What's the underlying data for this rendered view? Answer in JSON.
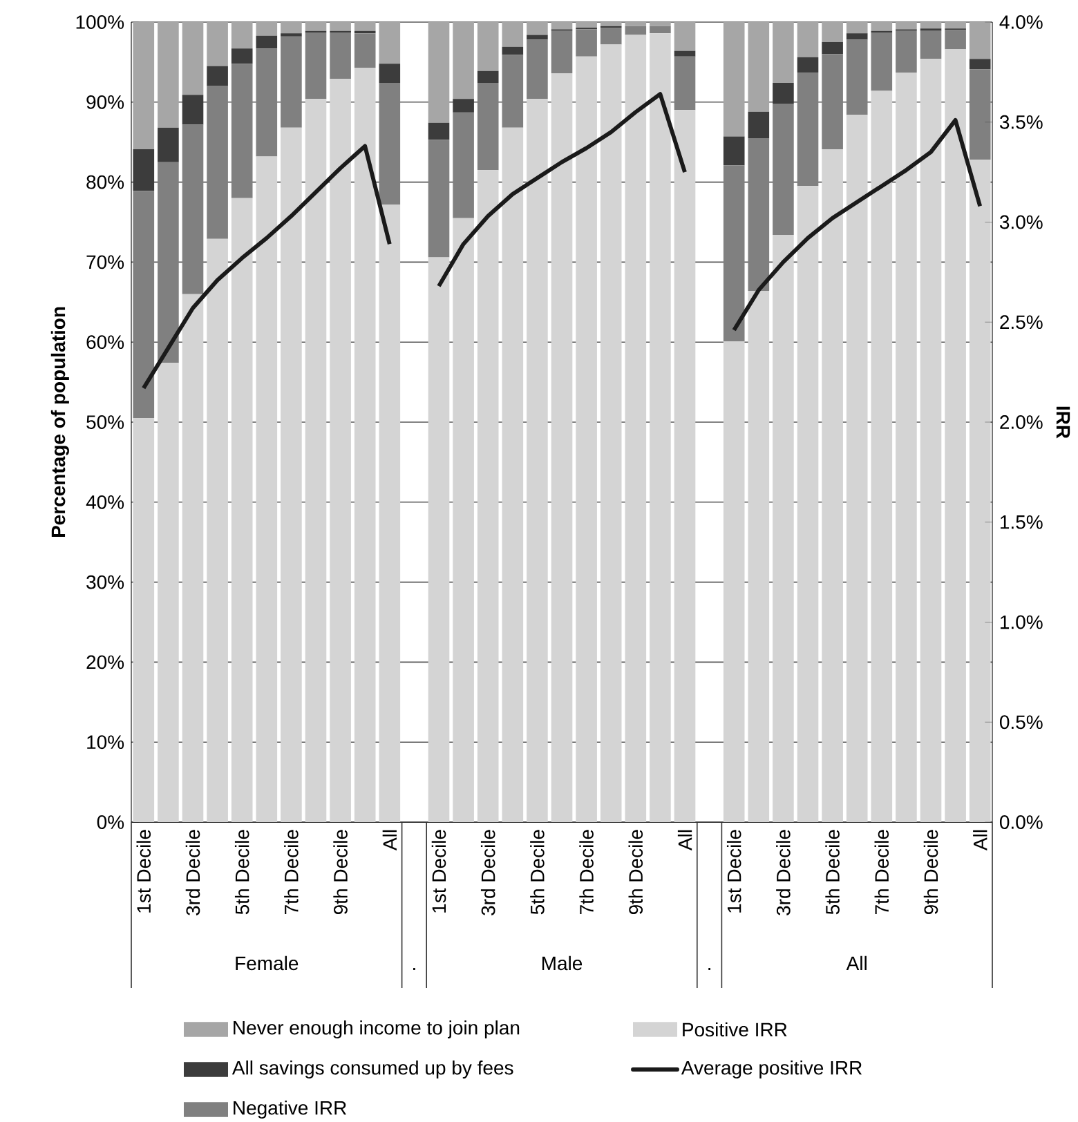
{
  "chart_data": {
    "type": "bar",
    "stacked": true,
    "categories": [
      "1st Decile",
      null,
      "3rd Decile",
      null,
      "5th Decile",
      null,
      "7th Decile",
      null,
      "9th Decile",
      null,
      "All",
      null,
      "1st Decile",
      null,
      "3rd Decile",
      null,
      "5th Decile",
      null,
      "7th Decile",
      null,
      "9th Decile",
      null,
      "All",
      null,
      "1st Decile",
      null,
      "3rd Decile",
      null,
      "5th Decile",
      null,
      "7th Decile",
      null,
      "9th Decile",
      null,
      "All"
    ],
    "series": [
      {
        "name": "Positive IRR",
        "color": "#d4d4d4",
        "values": [
          50.5,
          57.4,
          66.0,
          72.9,
          78.0,
          83.2,
          86.8,
          90.4,
          92.9,
          94.3,
          77.2,
          null,
          70.6,
          75.5,
          81.5,
          86.8,
          90.4,
          93.6,
          95.7,
          97.2,
          98.4,
          98.6,
          89.0,
          null,
          60.1,
          66.4,
          73.4,
          79.5,
          84.1,
          88.4,
          91.4,
          93.7,
          95.4,
          96.6,
          82.8
        ]
      },
      {
        "name": "Negative IRR",
        "color": "#808080",
        "values": [
          28.4,
          25.1,
          21.2,
          19.1,
          16.8,
          13.5,
          11.4,
          8.3,
          5.8,
          4.3,
          15.2,
          null,
          14.7,
          13.2,
          10.9,
          9.1,
          7.4,
          5.3,
          3.4,
          2.1,
          1.1,
          0.9,
          6.7,
          null,
          22.0,
          19.1,
          16.4,
          14.2,
          11.9,
          9.4,
          7.3,
          5.2,
          3.5,
          2.4,
          11.3
        ]
      },
      {
        "name": "All savings consumed up by fees",
        "color": "#3c3c3c",
        "values": [
          5.2,
          4.3,
          3.7,
          2.5,
          1.9,
          1.6,
          0.4,
          0.2,
          0.2,
          0.3,
          2.4,
          null,
          2.1,
          1.7,
          1.5,
          1.0,
          0.6,
          0.2,
          0.2,
          0.2,
          0,
          0,
          0.7,
          null,
          3.6,
          3.3,
          2.6,
          1.9,
          1.5,
          0.8,
          0.2,
          0.2,
          0.3,
          0.2,
          1.3
        ]
      },
      {
        "name": "Never enough income to join plan",
        "color": "#a6a6a6",
        "values": [
          15.9,
          13.2,
          9.1,
          5.5,
          3.3,
          1.7,
          1.4,
          1.1,
          1.1,
          1.1,
          5.2,
          null,
          12.6,
          9.6,
          6.1,
          3.1,
          1.6,
          0.9,
          0.7,
          0.5,
          0.5,
          0.5,
          3.6,
          null,
          14.3,
          11.2,
          7.6,
          4.4,
          2.5,
          1.4,
          1.1,
          0.9,
          0.8,
          0.8,
          4.6
        ]
      },
      {
        "name": "Average positive IRR",
        "type": "line",
        "axis": "y2",
        "color": "#1a1a1a",
        "values": [
          2.17,
          2.37,
          2.57,
          2.71,
          2.82,
          2.92,
          3.03,
          3.15,
          3.27,
          3.38,
          2.89,
          null,
          2.68,
          2.89,
          3.03,
          3.14,
          3.22,
          3.3,
          3.37,
          3.45,
          3.55,
          3.64,
          3.25,
          null,
          2.46,
          2.66,
          2.8,
          2.92,
          3.02,
          3.1,
          3.18,
          3.26,
          3.35,
          3.51,
          3.08
        ]
      }
    ],
    "ylabel": "Percentage of population",
    "y2label": "IRR",
    "ylim": [
      0,
      100
    ],
    "yticks": [
      {
        "value": 0,
        "label": "0%"
      },
      {
        "value": 10,
        "label": "10%"
      },
      {
        "value": 20,
        "label": "20%"
      },
      {
        "value": 30,
        "label": "30%"
      },
      {
        "value": 40,
        "label": "40%"
      },
      {
        "value": 50,
        "label": "50%"
      },
      {
        "value": 60,
        "label": "60%"
      },
      {
        "value": 70,
        "label": "70%"
      },
      {
        "value": 80,
        "label": "80%"
      },
      {
        "value": 90,
        "label": "90%"
      },
      {
        "value": 100,
        "label": "100%"
      }
    ],
    "y2lim": [
      0,
      4
    ],
    "y2ticks": [
      {
        "value": 0,
        "label": "0.0%"
      },
      {
        "value": 0.5,
        "label": "0.5%"
      },
      {
        "value": 1,
        "label": "1.0%"
      },
      {
        "value": 1.5,
        "label": "1.5%"
      },
      {
        "value": 2,
        "label": "2.0%"
      },
      {
        "value": 2.5,
        "label": "2.5%"
      },
      {
        "value": 3,
        "label": "3.0%"
      },
      {
        "value": 3.5,
        "label": "3.5%"
      },
      {
        "value": 4,
        "label": "4.0%"
      }
    ],
    "grid": "y",
    "legend": "bottom",
    "annotations": [
      "Female",
      ".",
      "Male",
      ".",
      "All"
    ]
  }
}
